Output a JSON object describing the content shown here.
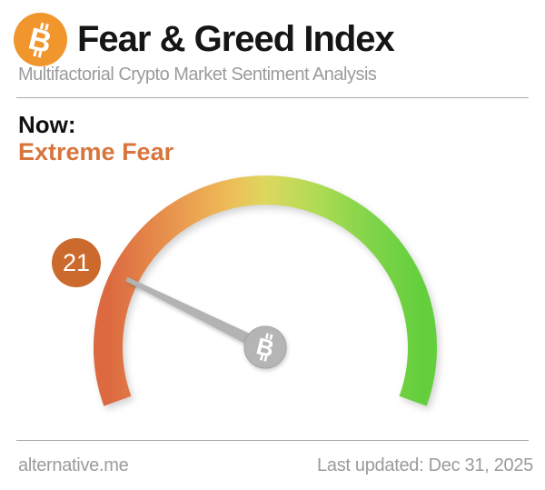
{
  "header": {
    "title": "Fear & Greed Index",
    "subtitle": "Multifactorial Crypto Market Sentiment Analysis",
    "logo_color": "#f0962d"
  },
  "icons": {
    "bitcoin_glyph": "B"
  },
  "status": {
    "now_label": "Now:",
    "classification": "Extreme Fear",
    "classification_color": "#d7753c"
  },
  "footer": {
    "site_link": "alternative.me",
    "last_updated": "Last updated: Dec 31, 2025"
  },
  "chart_data": {
    "type": "gauge",
    "title": "Fear & Greed Index",
    "value": 21,
    "min": 0,
    "max": 100,
    "classification": "Extreme Fear",
    "sweep_deg": 220,
    "overhang_deg": 20,
    "badge_color": "#cb6a2c",
    "needle_color": "#b3b3b3",
    "pivot_color": "#b5b5b5",
    "pivot_rim_color": "#a3a3a3",
    "arc_gradient": [
      {
        "offset": 0,
        "color": "#dc6940"
      },
      {
        "offset": 0.22,
        "color": "#e9984f"
      },
      {
        "offset": 0.38,
        "color": "#eebb58"
      },
      {
        "offset": 0.5,
        "color": "#ded75e"
      },
      {
        "offset": 0.66,
        "color": "#b0db54"
      },
      {
        "offset": 0.84,
        "color": "#7fd449"
      },
      {
        "offset": 1,
        "color": "#63cf3d"
      }
    ]
  }
}
